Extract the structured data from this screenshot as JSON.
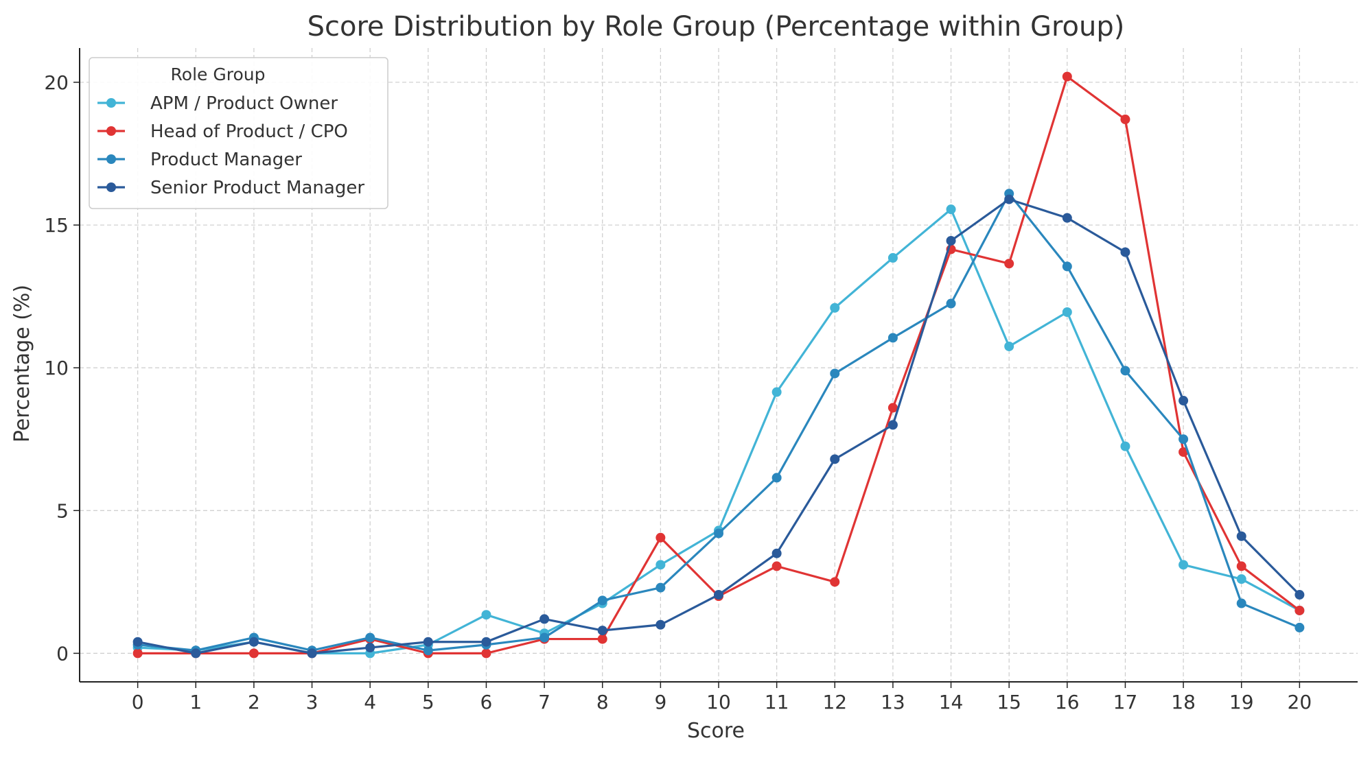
{
  "chart_data": {
    "type": "line",
    "title": "Score Distribution by Role Group (Percentage within Group)",
    "xlabel": "Score",
    "ylabel": "Percentage (%)",
    "x": [
      0,
      1,
      2,
      3,
      4,
      5,
      6,
      7,
      8,
      9,
      10,
      11,
      12,
      13,
      14,
      15,
      16,
      17,
      18,
      19,
      20
    ],
    "xticks": [
      "0",
      "1",
      "2",
      "3",
      "4",
      "5",
      "6",
      "7",
      "8",
      "9",
      "10",
      "11",
      "12",
      "13",
      "14",
      "15",
      "16",
      "17",
      "18",
      "19",
      "20"
    ],
    "yticks": [
      0,
      5,
      10,
      15,
      20
    ],
    "ytick_labels": [
      "0",
      "5",
      "10",
      "15",
      "20"
    ],
    "xlim": [
      -1,
      21
    ],
    "ylim": [
      -1,
      21.2
    ],
    "grid": true,
    "legend": {
      "title": "Role Group",
      "placement": "upper-left"
    },
    "series": [
      {
        "name": "APM / Product Owner",
        "color": "#42b4d6",
        "values": [
          0.2,
          0.1,
          0.4,
          0.0,
          0.0,
          0.3,
          1.35,
          0.7,
          1.75,
          3.1,
          4.3,
          9.15,
          12.1,
          13.85,
          15.55,
          10.75,
          11.95,
          7.25,
          3.1,
          2.6,
          1.5
        ]
      },
      {
        "name": "Head of Product / CPO",
        "color": "#e03434",
        "values": [
          0.0,
          0.0,
          0.0,
          0.0,
          0.5,
          0.0,
          0.0,
          0.5,
          0.5,
          4.05,
          2.0,
          3.05,
          2.5,
          8.6,
          14.15,
          13.65,
          20.2,
          18.7,
          7.05,
          3.05,
          1.5
        ]
      },
      {
        "name": "Product Manager",
        "color": "#2a87bd",
        "values": [
          0.3,
          0.1,
          0.55,
          0.1,
          0.55,
          0.1,
          0.3,
          0.55,
          1.85,
          2.3,
          4.2,
          6.15,
          9.8,
          11.05,
          12.25,
          16.1,
          13.55,
          9.9,
          7.5,
          1.75,
          0.9
        ]
      },
      {
        "name": "Senior Product Manager",
        "color": "#2a5a9a",
        "values": [
          0.4,
          0.0,
          0.4,
          0.0,
          0.2,
          0.4,
          0.4,
          1.2,
          0.8,
          1.0,
          2.05,
          3.5,
          6.8,
          8.0,
          14.45,
          15.9,
          15.25,
          14.05,
          8.85,
          4.1,
          2.05
        ]
      }
    ]
  }
}
